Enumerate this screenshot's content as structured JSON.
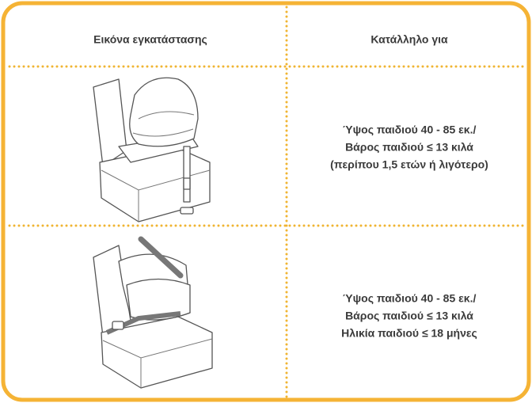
{
  "table": {
    "header": [
      "Εικόνα εγκατάστασης",
      "Κατάλληλο για"
    ],
    "rows": [
      {
        "lines": [
          "Ύψος παιδιού 40 - 85 εκ./",
          "Βάρος παιδιού ≤ 13 κιλά",
          "(περίπου 1,5 ετών ή λιγότερο)"
        ]
      },
      {
        "lines": [
          "Ύψος παιδιού 40 - 85 εκ./",
          "Βάρος παιδιού ≤ 13 κιλά",
          "Ηλικία παιδιού ≤ 18 μήνες"
        ]
      }
    ]
  }
}
